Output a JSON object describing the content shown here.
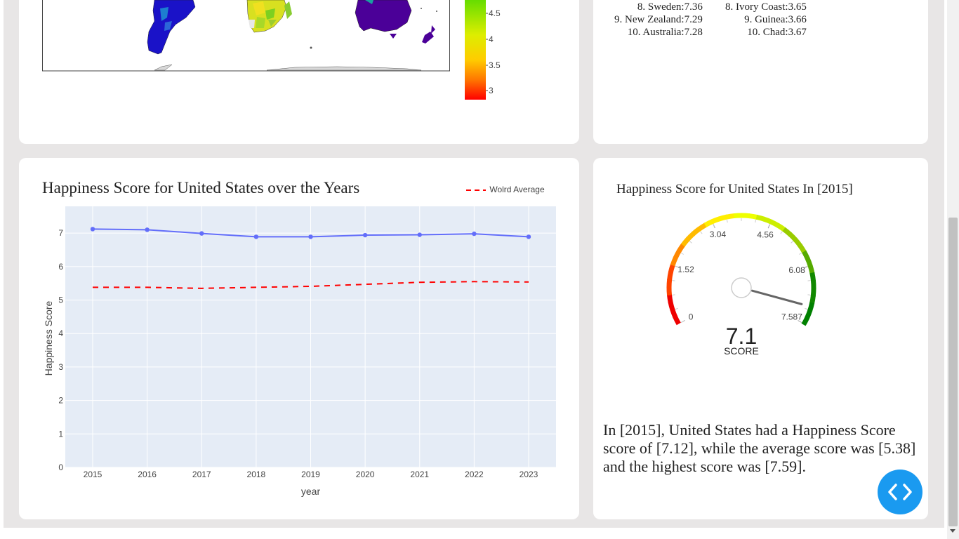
{
  "ranking": {
    "top": [
      {
        "rank": "8.",
        "country": "Sweden",
        "score": "7.36"
      },
      {
        "rank": "9.",
        "country": "New Zealand",
        "score": "7.29"
      },
      {
        "rank": "10.",
        "country": "Australia",
        "score": "7.28"
      }
    ],
    "bottom": [
      {
        "rank": "8.",
        "country": "Ivory Coast",
        "score": "3.65"
      },
      {
        "rank": "9.",
        "country": "Guinea",
        "score": "3.66"
      },
      {
        "rank": "10.",
        "country": "Chad",
        "score": "3.67"
      }
    ]
  },
  "colorbar": {
    "ticks": [
      "4.5",
      "4",
      "3.5",
      "3"
    ]
  },
  "line_chart": {
    "title": "Happiness Score for United States over the Years",
    "legend_label": "Wolrd Average"
  },
  "chart_data": {
    "type": "line",
    "x": [
      2015,
      2016,
      2017,
      2018,
      2019,
      2020,
      2021,
      2022,
      2023
    ],
    "series": [
      {
        "name": "",
        "values": [
          7.12,
          7.1,
          6.99,
          6.89,
          6.89,
          6.94,
          6.95,
          6.98,
          6.89
        ],
        "color": "#636efa"
      },
      {
        "name": "Wolrd Average",
        "values": [
          5.38,
          5.38,
          5.35,
          5.38,
          5.41,
          5.47,
          5.53,
          5.55,
          5.54
        ],
        "color": "#ff0000",
        "dash": true
      }
    ],
    "xlabel": "year",
    "ylabel": "Happiness Score",
    "ylim": [
      0,
      7.8
    ],
    "yticks": [
      "0",
      "1",
      "2",
      "3",
      "4",
      "5",
      "6",
      "7"
    ],
    "xticks": [
      "2015",
      "2016",
      "2017",
      "2018",
      "2019",
      "2020",
      "2021",
      "2022",
      "2023"
    ],
    "grid": true
  },
  "gauge": {
    "title": "Happiness Score for United States In [2015]",
    "value": "7.1",
    "value_raw": 7.12,
    "max": 7.587,
    "label": "SCORE",
    "ticks": [
      "0",
      "1.52",
      "3.04",
      "4.56",
      "6.08",
      "7.587"
    ]
  },
  "summary": "In [2015], United States had a Happiness Score score of [7.12], while the average score was [5.38] and the highest score was [7.59]."
}
